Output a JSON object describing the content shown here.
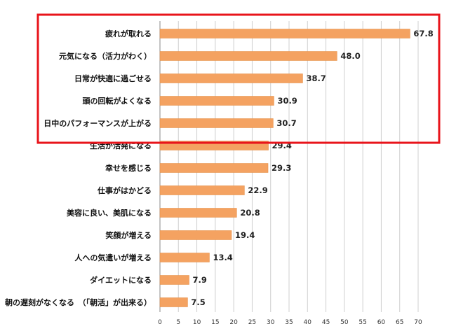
{
  "chart_data": {
    "type": "bar",
    "orientation": "horizontal",
    "title": "",
    "xlabel": "",
    "ylabel": "",
    "xlim": [
      0,
      70
    ],
    "x_ticks": [
      0,
      5,
      10,
      15,
      20,
      25,
      30,
      35,
      40,
      45,
      50,
      55,
      60,
      65,
      70
    ],
    "grid": true,
    "bar_color": "#F4A261",
    "highlight_color": "#E8141B",
    "highlighted_categories": [
      0,
      1,
      2,
      3,
      4
    ],
    "categories": [
      "疲れが取れる",
      "元気になる（活力がわく）",
      "日常が快適に過ごせる",
      "頭の回転がよくなる",
      "日中のパフォーマンスが上がる",
      "生活が活発になる",
      "幸せを感じる",
      "仕事がはかどる",
      "美容に良い、美肌になる",
      "笑顔が増える",
      "人への気遣いが増える",
      "ダイエットになる",
      "朝の遅刻がなくなる　（「朝活」が出来る）"
    ],
    "values": [
      67.8,
      48.0,
      38.7,
      30.9,
      30.7,
      29.4,
      29.3,
      22.9,
      20.8,
      19.4,
      13.4,
      7.9,
      7.5
    ],
    "value_labels": [
      "67.8",
      "48.0",
      "38.7",
      "30.9",
      "30.7",
      "29.4",
      "29.3",
      "22.9",
      "20.8",
      "19.4",
      "13.4",
      "7.9",
      "7.5"
    ]
  }
}
